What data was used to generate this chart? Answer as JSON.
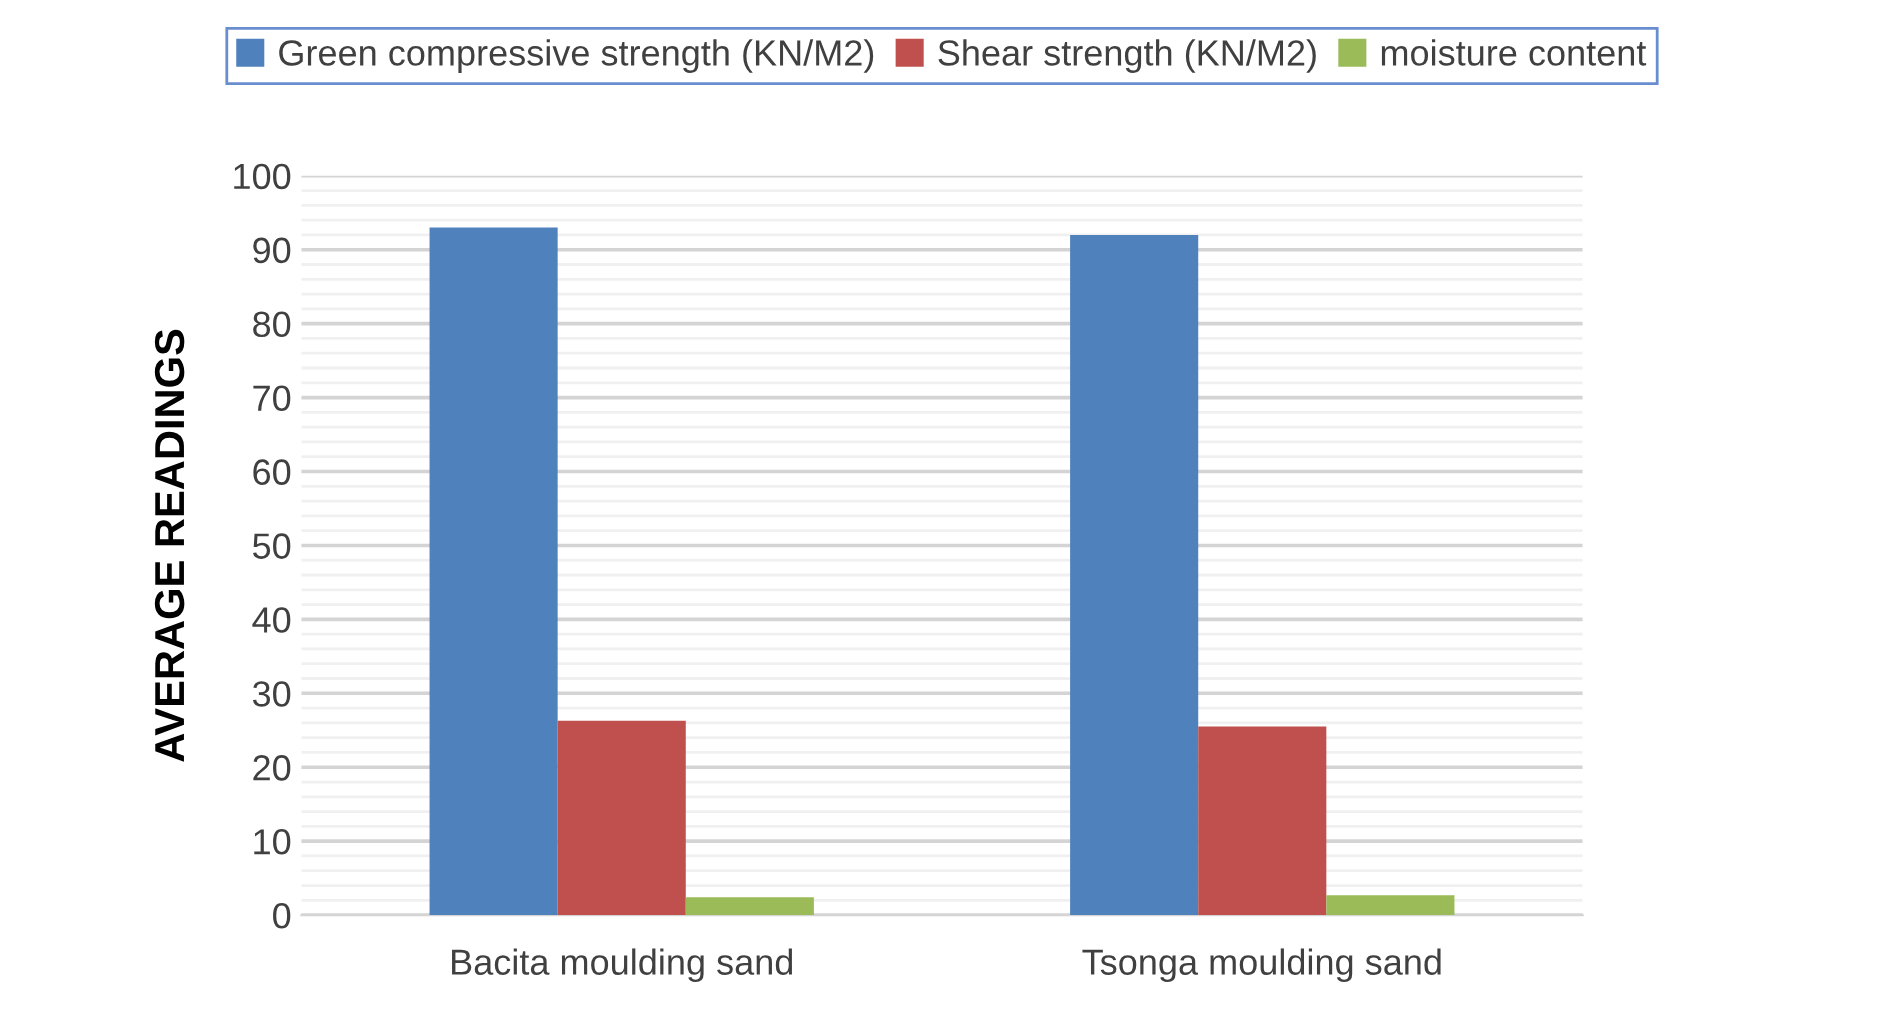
{
  "chart_data": {
    "type": "bar",
    "ylabel": "AVERAGE READINGS",
    "categories": [
      "Bacita moulding sand",
      "Tsonga moulding sand"
    ],
    "series": [
      {
        "name": "Green compressive strength (KN/M2)",
        "color": "#4f81bd",
        "values": [
          93,
          92
        ]
      },
      {
        "name": "Shear strength (KN/M2)",
        "color": "#c0504d",
        "values": [
          26.3,
          25.5
        ]
      },
      {
        "name": "moisture content",
        "color": "#9bbb59",
        "values": [
          2.4,
          2.7
        ]
      }
    ],
    "ylim": [
      0,
      100
    ],
    "yticks": [
      0,
      {
        "value": 2,
        "label": null
      },
      {
        "value": 4,
        "label": null
      },
      {
        "value": 6,
        "label": null
      },
      {
        "value": 8,
        "label": null
      },
      10,
      {
        "value": 12,
        "label": null
      },
      {
        "value": 14,
        "label": null
      },
      {
        "value": 16,
        "label": null
      },
      {
        "value": 18,
        "label": null
      },
      20,
      {
        "value": 22,
        "label": null
      },
      {
        "value": 24,
        "label": null
      },
      {
        "value": 26,
        "label": null
      },
      {
        "value": 28,
        "label": null
      },
      30,
      {
        "value": 32,
        "label": null
      },
      {
        "value": 34,
        "label": null
      },
      {
        "value": 36,
        "label": null
      },
      {
        "value": 38,
        "label": null
      },
      40,
      {
        "value": 42,
        "label": null
      },
      {
        "value": 44,
        "label": null
      },
      {
        "value": 46,
        "label": null
      },
      {
        "value": 48,
        "label": null
      },
      50,
      {
        "value": 52,
        "label": null
      },
      {
        "value": 54,
        "label": null
      },
      {
        "value": 56,
        "label": null
      },
      {
        "value": 58,
        "label": null
      },
      60,
      {
        "value": 62,
        "label": null
      },
      {
        "value": 64,
        "label": null
      },
      {
        "value": 66,
        "label": null
      },
      {
        "value": 68,
        "label": null
      },
      70,
      {
        "value": 72,
        "label": null
      },
      {
        "value": 74,
        "label": null
      },
      {
        "value": 76,
        "label": null
      },
      {
        "value": 78,
        "label": null
      },
      80,
      {
        "value": 82,
        "label": null
      },
      {
        "value": 84,
        "label": null
      },
      {
        "value": 86,
        "label": null
      },
      {
        "value": 88,
        "label": null
      },
      90,
      {
        "value": 92,
        "label": null
      },
      {
        "value": 94,
        "label": null
      },
      {
        "value": 96,
        "label": null
      },
      {
        "value": 98,
        "label": null
      },
      100
    ],
    "grid": "y",
    "legend": "top"
  }
}
